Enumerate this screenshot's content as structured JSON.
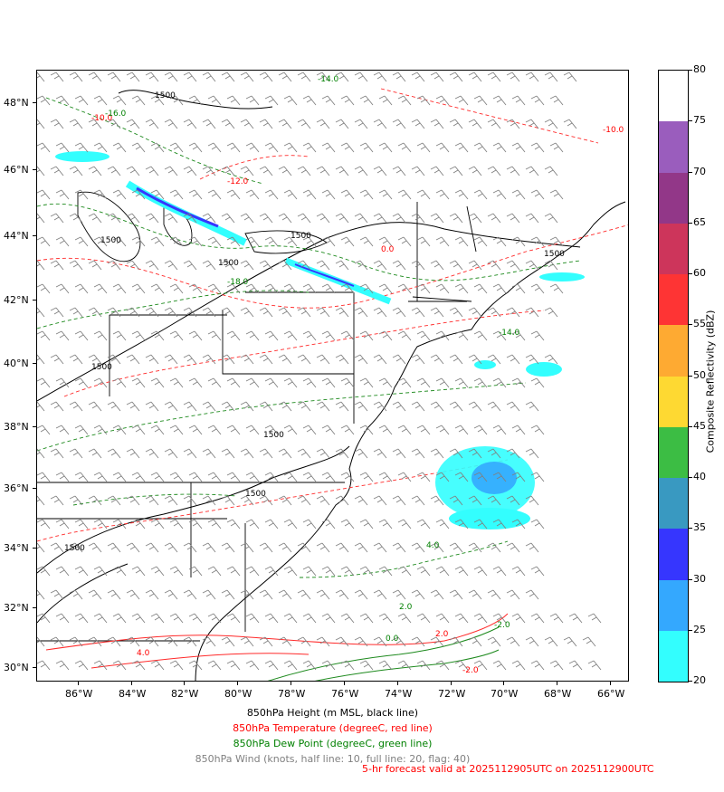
{
  "map": {
    "lat_labels": [
      "30°N",
      "32°N",
      "34°N",
      "36°N",
      "38°N",
      "40°N",
      "42°N",
      "44°N",
      "46°N",
      "48°N"
    ],
    "lon_labels": [
      "86°W",
      "84°W",
      "82°W",
      "80°W",
      "78°W",
      "76°W",
      "74°W",
      "72°W",
      "70°W",
      "68°W",
      "66°W"
    ],
    "height_contour_labels": [
      "1500",
      "1500",
      "1500",
      "1500",
      "1500",
      "1500",
      "1500",
      "1500",
      "1500"
    ],
    "temperature_contour_labels": [
      "-10.0",
      "-12.0",
      "-10.0",
      "0.0",
      "4.0",
      "2.0",
      "-2.0"
    ],
    "dewpoint_contour_labels": [
      "-14.0",
      "-16.0",
      "-18.0",
      "-14.0",
      "4.0",
      "2.0",
      "0.0",
      "-2.0"
    ],
    "colors": {
      "height": "#000000",
      "temperature": "#ff0000",
      "dewpoint": "#008000",
      "wind": "#808080"
    }
  },
  "colorbar": {
    "title": "Composite Reflectivity (dBZ)",
    "ticks": [
      "80",
      "75",
      "70",
      "65",
      "60",
      "55",
      "50",
      "45",
      "40",
      "35",
      "30",
      "25",
      "20"
    ],
    "colors": [
      "#ffffff",
      "#9a5dbd",
      "#923788",
      "#cd355b",
      "#fe3434",
      "#feaa32",
      "#fed932",
      "#3cbd44",
      "#3999c1",
      "#3636fe",
      "#34a8fe",
      "#33fefe"
    ]
  },
  "captions": {
    "height": "850hPa Height (m MSL, black line)",
    "temperature": "850hPa Temperature (degreeC, red line)",
    "dewpoint": "850hPa Dew Point (degreeC, green line)",
    "wind": "850hPa Wind (knots, half line: 10, full line: 20, flag: 40)",
    "forecast": "5-hr forecast valid at 2025112905UTC on 2025112900UTC"
  }
}
